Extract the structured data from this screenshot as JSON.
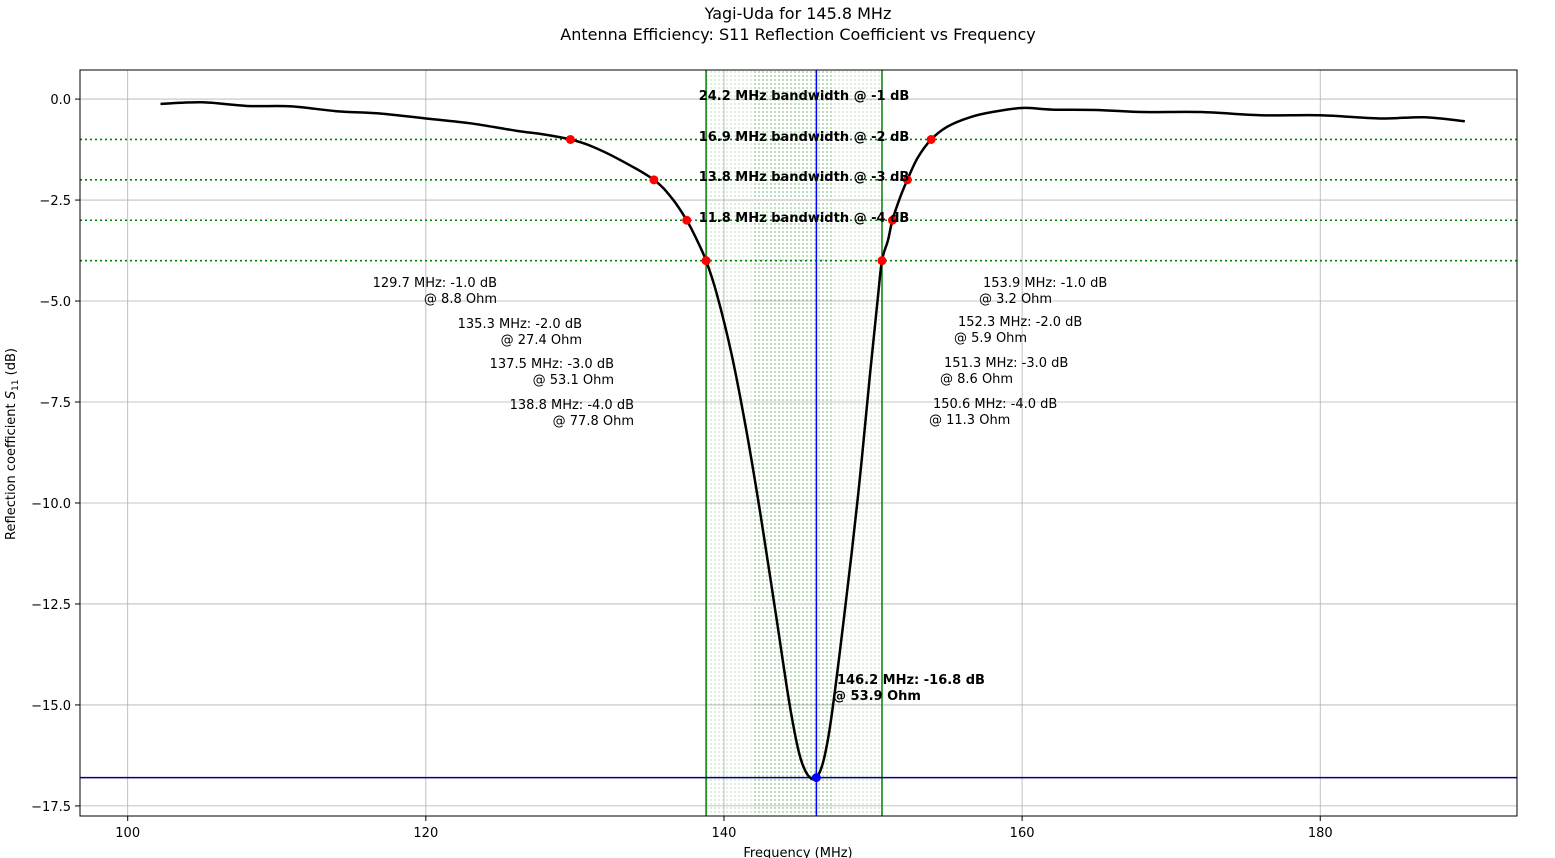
{
  "chart_data": {
    "type": "line",
    "title": "Yagi-Uda for 145.8 MHz",
    "subtitle": "Antenna Efficiency: S11 Reflection Coefficient vs Frequency",
    "xlabel": "Frequency (MHz)",
    "ylabel": "Reflection coefficient S11 (dB)",
    "ylabel_main": "Reflection coefficient ",
    "ylabel_sym": "S",
    "ylabel_sub": "11",
    "ylabel_unit": " (dB)",
    "xlim": [
      96.8,
      193.2
    ],
    "ylim": [
      -17.75,
      0.72
    ],
    "grid": true,
    "x_ticks": [
      100,
      120,
      140,
      160,
      180
    ],
    "x_tick_labels": [
      "100",
      "120",
      "140",
      "160",
      "180"
    ],
    "y_ticks": [
      0,
      -2.5,
      -5,
      -7.5,
      -10,
      -12.5,
      -15,
      -17.5
    ],
    "y_tick_labels": [
      "0.0",
      "−2.5",
      "−5.0",
      "−7.5",
      "−10.0",
      "−12.5",
      "−15.0",
      "−17.5"
    ],
    "series": [
      {
        "color": "#000000",
        "x": [
          102.2,
          105,
          108,
          111,
          114,
          117,
          120,
          123,
          126,
          128,
          129.7,
          131,
          133,
          135.3,
          136.5,
          137.5,
          138.2,
          138.8,
          139.5,
          140.5,
          141.5,
          142.5,
          143.5,
          144.5,
          145.3,
          146.2,
          147.0,
          148.0,
          149.0,
          149.8,
          150.3,
          150.6,
          151.0,
          151.3,
          151.8,
          152.3,
          153.0,
          153.9,
          155,
          156.5,
          158,
          160,
          162,
          165,
          168,
          172,
          176,
          180,
          184,
          187,
          189.7
        ],
        "y": [
          -0.12,
          -0.08,
          -0.17,
          -0.18,
          -0.3,
          -0.36,
          -0.48,
          -0.6,
          -0.78,
          -0.88,
          -1.0,
          -1.15,
          -1.5,
          -2.0,
          -2.45,
          -3.0,
          -3.5,
          -4.0,
          -4.8,
          -6.3,
          -8.2,
          -10.4,
          -12.8,
          -15.2,
          -16.5,
          -16.8,
          -15.8,
          -13.0,
          -9.8,
          -6.8,
          -5.0,
          -4.0,
          -3.5,
          -3.0,
          -2.45,
          -2.0,
          -1.45,
          -1.0,
          -0.68,
          -0.45,
          -0.32,
          -0.22,
          -0.26,
          -0.27,
          -0.32,
          -0.32,
          -0.4,
          -0.4,
          -0.48,
          -0.45,
          -0.55
        ]
      }
    ],
    "threshold_lines": [
      -1,
      -2,
      -3,
      -4
    ],
    "threshold_color": "#008000",
    "curve_color": "#000000",
    "point_color": "#ff0000",
    "resonance_color": "#0000ff",
    "band_edges": [
      138.8,
      150.6
    ],
    "resonance": {
      "x": 146.2,
      "y": -16.8,
      "label1": "146.2 MHz: -16.8 dB",
      "label2": "@ 53.9 Ohm"
    },
    "bandwidth_labels": [
      {
        "level": -1,
        "text": "24.2 MHz bandwidth @ -1 dB"
      },
      {
        "level": -2,
        "text": "16.9 MHz bandwidth @ -2 dB"
      },
      {
        "level": -3,
        "text": "13.8 MHz bandwidth @ -3 dB"
      },
      {
        "level": -4,
        "text": "11.8 MHz bandwidth @ -4 dB"
      }
    ],
    "left_points": [
      {
        "x": 129.7,
        "y": -1.0,
        "label1": "129.7 MHz: -1.0 dB",
        "label2": "@ 8.8 Ohm"
      },
      {
        "x": 135.3,
        "y": -2.0,
        "label1": "135.3 MHz: -2.0 dB",
        "label2": "@ 27.4 Ohm"
      },
      {
        "x": 137.5,
        "y": -3.0,
        "label1": "137.5 MHz: -3.0 dB",
        "label2": "@ 53.1 Ohm"
      },
      {
        "x": 138.8,
        "y": -4.0,
        "label1": "138.8 MHz: -4.0 dB",
        "label2": "@ 77.8 Ohm"
      }
    ],
    "right_points": [
      {
        "x": 153.9,
        "y": -1.0,
        "label1": "153.9 MHz: -1.0 dB",
        "label2": "@ 3.2 Ohm"
      },
      {
        "x": 152.3,
        "y": -2.0,
        "label1": "152.3 MHz: -2.0 dB",
        "label2": "@ 5.9 Ohm"
      },
      {
        "x": 151.3,
        "y": -3.0,
        "label1": "151.3 MHz: -3.0 dB",
        "label2": "@ 8.6 Ohm"
      },
      {
        "x": 150.6,
        "y": -4.0,
        "label1": "150.6 MHz: -4.0 dB",
        "label2": "@ 11.3 Ohm"
      }
    ]
  }
}
